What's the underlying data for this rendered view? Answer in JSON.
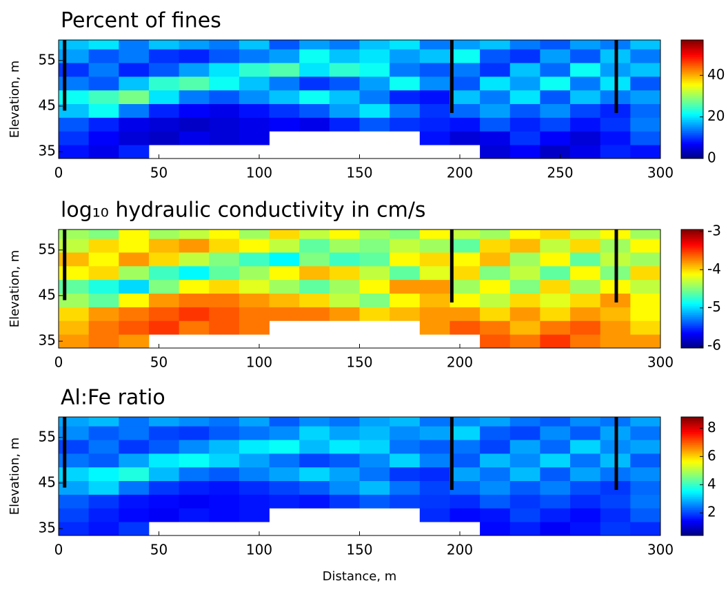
{
  "chart_data": [
    {
      "type": "heatmap",
      "title": "Percent of fines",
      "ylabel": "Elevation, m",
      "x": [
        7.5,
        22.5,
        37.5,
        52.5,
        67.5,
        82.5,
        97.5,
        112.5,
        127.5,
        142.5,
        157.5,
        172.5,
        187.5,
        202.5,
        217.5,
        232.5,
        247.5,
        262.5,
        277.5,
        292.5
      ],
      "y": [
        35,
        38,
        41,
        44,
        47,
        50,
        53,
        56,
        59
      ],
      "values": [
        [
          8,
          6,
          9,
          null,
          null,
          null,
          null,
          null,
          null,
          null,
          null,
          null,
          null,
          null,
          5,
          7,
          4,
          6,
          9,
          8
        ],
        [
          10,
          7,
          5,
          4,
          6,
          5,
          6,
          null,
          null,
          null,
          null,
          null,
          8,
          5,
          6,
          10,
          7,
          5,
          8,
          12
        ],
        [
          12,
          9,
          6,
          5,
          4,
          5,
          6,
          7,
          6,
          9,
          12,
          10,
          9,
          8,
          12,
          9,
          11,
          8,
          10,
          14
        ],
        [
          18,
          22,
          14,
          9,
          7,
          6,
          8,
          10,
          12,
          16,
          20,
          14,
          10,
          13,
          16,
          12,
          15,
          11,
          9,
          13
        ],
        [
          22,
          25,
          28,
          20,
          14,
          12,
          15,
          18,
          22,
          18,
          14,
          9,
          8,
          18,
          14,
          20,
          12,
          18,
          14,
          16
        ],
        [
          14,
          12,
          18,
          24,
          26,
          22,
          18,
          14,
          10,
          12,
          16,
          22,
          15,
          12,
          20,
          16,
          22,
          14,
          20,
          12
        ],
        [
          10,
          14,
          9,
          12,
          16,
          20,
          24,
          26,
          20,
          24,
          22,
          14,
          12,
          14,
          10,
          18,
          13,
          22,
          16,
          18
        ],
        [
          16,
          12,
          14,
          10,
          9,
          12,
          14,
          16,
          22,
          18,
          20,
          16,
          18,
          22,
          12,
          10,
          16,
          12,
          18,
          14
        ],
        [
          18,
          20,
          14,
          18,
          16,
          14,
          18,
          12,
          16,
          14,
          18,
          20,
          14,
          16,
          18,
          14,
          12,
          16,
          14,
          18
        ]
      ],
      "xlim": [
        0,
        300
      ],
      "ylim": [
        33.5,
        59.5
      ],
      "xticks": [
        0,
        50,
        100,
        150,
        200,
        250,
        300
      ],
      "yticks": [
        35,
        45,
        55
      ],
      "clim": [
        0,
        57
      ],
      "cticks": [
        0,
        20,
        40
      ],
      "colormap": "jet",
      "boreholes": [
        {
          "x": 3,
          "bottom": 44
        },
        {
          "x": 196,
          "bottom": 43.5
        },
        {
          "x": 278,
          "bottom": 43.5
        }
      ]
    },
    {
      "type": "heatmap",
      "title": "log₁₀ hydraulic conductivity in cm/s",
      "ylabel": "Elevation, m",
      "x": [
        7.5,
        22.5,
        37.5,
        52.5,
        67.5,
        82.5,
        97.5,
        112.5,
        127.5,
        142.5,
        157.5,
        172.5,
        187.5,
        202.5,
        217.5,
        232.5,
        247.5,
        262.5,
        277.5,
        292.5
      ],
      "y": [
        35,
        38,
        41,
        44,
        47,
        50,
        53,
        56,
        59
      ],
      "values": [
        [
          -3.8,
          -3.7,
          -3.8,
          null,
          null,
          null,
          null,
          null,
          null,
          null,
          null,
          null,
          null,
          null,
          -3.6,
          -3.7,
          -3.5,
          -3.7,
          -3.8,
          -3.8
        ],
        [
          -3.9,
          -3.7,
          -3.6,
          -3.5,
          -3.7,
          -3.6,
          -3.7,
          null,
          null,
          null,
          null,
          null,
          -3.8,
          -3.6,
          -3.7,
          -3.9,
          -3.7,
          -3.6,
          -3.8,
          -4.0
        ],
        [
          -4.0,
          -3.8,
          -3.7,
          -3.6,
          -3.5,
          -3.6,
          -3.7,
          -3.7,
          -3.7,
          -3.8,
          -4.0,
          -3.9,
          -3.8,
          -3.8,
          -4.0,
          -3.8,
          -4.0,
          -3.8,
          -3.9,
          -4.1
        ],
        [
          -4.4,
          -4.6,
          -4.1,
          -3.8,
          -3.7,
          -3.7,
          -3.8,
          -3.9,
          -4.0,
          -4.3,
          -4.5,
          -4.1,
          -3.9,
          -4.1,
          -4.3,
          -4.0,
          -4.2,
          -4.0,
          -3.8,
          -4.1
        ],
        [
          -4.6,
          -4.8,
          -5.0,
          -4.5,
          -4.1,
          -4.0,
          -4.2,
          -4.4,
          -4.6,
          -4.4,
          -4.1,
          -3.8,
          -3.8,
          -4.4,
          -4.1,
          -4.5,
          -4.0,
          -4.4,
          -4.1,
          -4.3
        ],
        [
          -4.1,
          -4.0,
          -4.4,
          -4.7,
          -4.9,
          -4.6,
          -4.4,
          -4.1,
          -3.9,
          -4.0,
          -4.3,
          -4.6,
          -4.2,
          -4.0,
          -4.5,
          -4.3,
          -4.6,
          -4.1,
          -4.5,
          -4.0
        ],
        [
          -3.9,
          -4.1,
          -3.8,
          -4.0,
          -4.3,
          -4.5,
          -4.7,
          -4.9,
          -4.5,
          -4.7,
          -4.6,
          -4.1,
          -4.0,
          -4.1,
          -3.9,
          -4.4,
          -4.1,
          -4.6,
          -4.3,
          -4.4
        ],
        [
          -4.3,
          -4.0,
          -4.1,
          -3.9,
          -3.8,
          -4.0,
          -4.1,
          -4.3,
          -4.6,
          -4.4,
          -4.5,
          -4.3,
          -4.4,
          -4.6,
          -4.0,
          -3.9,
          -4.3,
          -4.0,
          -4.4,
          -4.1
        ],
        [
          -4.4,
          -4.5,
          -4.1,
          -4.4,
          -4.3,
          -4.1,
          -4.4,
          -4.0,
          -4.3,
          -4.1,
          -4.4,
          -4.5,
          -4.1,
          -4.3,
          -4.4,
          -4.1,
          -4.0,
          -4.3,
          -4.1,
          -4.4
        ]
      ],
      "xlim": [
        0,
        300
      ],
      "ylim": [
        33.5,
        59.5
      ],
      "xticks": [
        0,
        50,
        100,
        150,
        200,
        300
      ],
      "yticks": [
        35,
        45,
        55
      ],
      "clim": [
        -6.05,
        -2.95
      ],
      "cticks": [
        -3,
        -4,
        -5,
        -6
      ],
      "colormap": "jet",
      "boreholes": [
        {
          "x": 3,
          "bottom": 44
        },
        {
          "x": 196,
          "bottom": 43.5
        },
        {
          "x": 278,
          "bottom": 43.5
        }
      ]
    },
    {
      "type": "heatmap",
      "title": "Al:Fe ratio",
      "ylabel": "Elevation, m",
      "xlabel": "Distance, m",
      "x": [
        7.5,
        22.5,
        37.5,
        52.5,
        67.5,
        82.5,
        97.5,
        112.5,
        127.5,
        142.5,
        157.5,
        172.5,
        187.5,
        202.5,
        217.5,
        232.5,
        247.5,
        262.5,
        277.5,
        292.5
      ],
      "y": [
        35,
        38,
        41,
        44,
        47,
        50,
        53,
        56,
        59
      ],
      "values": [
        [
          1.8,
          1.6,
          1.9,
          null,
          null,
          null,
          null,
          null,
          null,
          null,
          null,
          null,
          null,
          null,
          1.5,
          1.7,
          1.4,
          1.6,
          1.9,
          1.8
        ],
        [
          2.0,
          1.7,
          1.5,
          1.4,
          1.6,
          1.5,
          1.6,
          null,
          null,
          null,
          null,
          null,
          1.8,
          1.5,
          1.6,
          2.0,
          1.7,
          1.5,
          1.8,
          2.2
        ],
        [
          2.2,
          1.9,
          1.6,
          1.5,
          1.4,
          1.5,
          1.6,
          1.7,
          1.6,
          1.9,
          2.2,
          2.0,
          1.9,
          1.8,
          2.2,
          1.9,
          2.1,
          1.8,
          2.0,
          2.4
        ],
        [
          2.8,
          3.2,
          2.4,
          1.9,
          1.7,
          1.6,
          1.8,
          2.0,
          2.2,
          2.6,
          3.0,
          2.4,
          2.0,
          2.3,
          2.6,
          2.2,
          2.5,
          2.1,
          1.9,
          2.3
        ],
        [
          3.2,
          3.5,
          3.8,
          3.0,
          2.4,
          2.2,
          2.5,
          2.8,
          3.2,
          2.8,
          2.4,
          1.9,
          1.8,
          2.8,
          2.4,
          3.0,
          2.2,
          2.8,
          2.4,
          2.6
        ],
        [
          2.4,
          2.2,
          2.8,
          3.4,
          3.6,
          3.2,
          2.8,
          2.4,
          2.0,
          2.2,
          2.6,
          3.2,
          2.5,
          2.2,
          3.0,
          2.6,
          3.2,
          2.4,
          3.0,
          2.2
        ],
        [
          2.0,
          2.4,
          1.9,
          2.2,
          2.6,
          3.0,
          3.4,
          3.6,
          3.0,
          3.4,
          3.2,
          2.4,
          2.2,
          2.4,
          2.0,
          2.8,
          2.3,
          3.2,
          2.6,
          2.8
        ],
        [
          2.6,
          2.2,
          2.4,
          2.0,
          1.9,
          2.2,
          2.4,
          2.6,
          3.2,
          2.8,
          3.0,
          2.6,
          2.8,
          3.2,
          2.2,
          2.0,
          2.6,
          2.2,
          2.8,
          2.4
        ],
        [
          2.8,
          3.0,
          2.4,
          2.8,
          2.6,
          2.4,
          2.8,
          2.2,
          2.6,
          2.4,
          2.8,
          3.0,
          2.4,
          2.6,
          2.8,
          2.4,
          2.2,
          2.6,
          2.4,
          2.8
        ]
      ],
      "xlim": [
        0,
        300
      ],
      "ylim": [
        33.5,
        59.5
      ],
      "xticks": [
        0,
        50,
        100,
        150,
        200,
        300
      ],
      "yticks": [
        35,
        45,
        55
      ],
      "clim": [
        0.4,
        8.8
      ],
      "cticks": [
        2,
        4,
        6,
        8
      ],
      "colormap": "jet",
      "boreholes": [
        {
          "x": 3,
          "bottom": 44
        },
        {
          "x": 196,
          "bottom": 43.5
        },
        {
          "x": 278,
          "bottom": 43.5
        }
      ]
    }
  ]
}
